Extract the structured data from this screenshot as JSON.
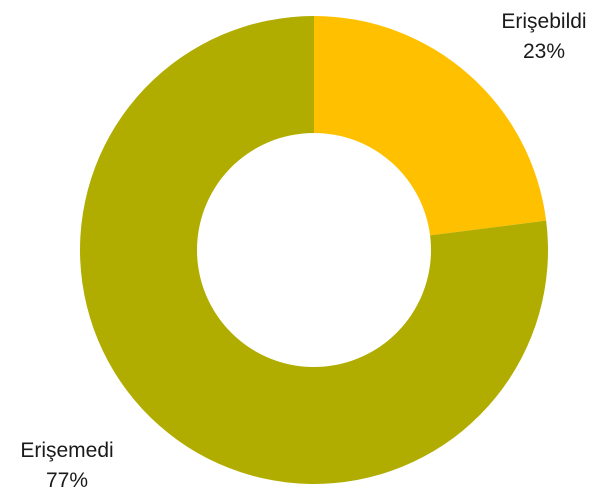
{
  "chart_data": {
    "type": "pie",
    "variant": "donut",
    "title": "",
    "legend": "none",
    "slices": [
      {
        "label": "Erişebildi",
        "value": 23,
        "display": "23%",
        "color": "#ffc000"
      },
      {
        "label": "Erişemedi",
        "value": 77,
        "display": "77%",
        "color": "#b0ad00"
      }
    ]
  }
}
